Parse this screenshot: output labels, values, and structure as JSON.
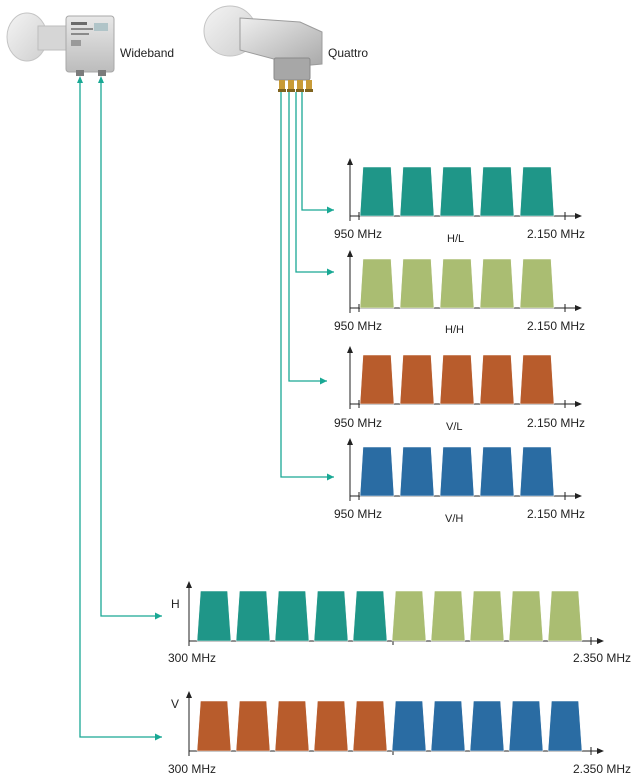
{
  "devices": {
    "wideband": {
      "label": "Wideband"
    },
    "quattro": {
      "label": "Quattro"
    }
  },
  "colors": {
    "teal": "#1f9688",
    "olive": "#aabd72",
    "rust": "#b85c2c",
    "blue": "#2a6ca3",
    "line": "#19a894",
    "axis": "#222222"
  },
  "quattro_outputs": [
    {
      "band": "H/L",
      "fill": "teal",
      "freq_start": "950 MHz",
      "freq_end": "2.150 MHz"
    },
    {
      "band": "H/H",
      "fill": "olive",
      "freq_start": "950 MHz",
      "freq_end": "2.150 MHz"
    },
    {
      "band": "V/L",
      "fill": "rust",
      "freq_start": "950 MHz",
      "freq_end": "2.150 MHz"
    },
    {
      "band": "V/H",
      "fill": "blue",
      "freq_start": "950 MHz",
      "freq_end": "2.150 MHz"
    }
  ],
  "wideband_outputs": [
    {
      "axis_label": "H",
      "fills": [
        "teal",
        "teal",
        "teal",
        "teal",
        "teal",
        "olive",
        "olive",
        "olive",
        "olive",
        "olive"
      ],
      "freq_start": "300 MHz",
      "freq_end": "2.350 MHz"
    },
    {
      "axis_label": "V",
      "fills": [
        "rust",
        "rust",
        "rust",
        "rust",
        "rust",
        "blue",
        "blue",
        "blue",
        "blue",
        "blue"
      ],
      "freq_start": "300 MHz",
      "freq_end": "2.350 MHz"
    }
  ]
}
